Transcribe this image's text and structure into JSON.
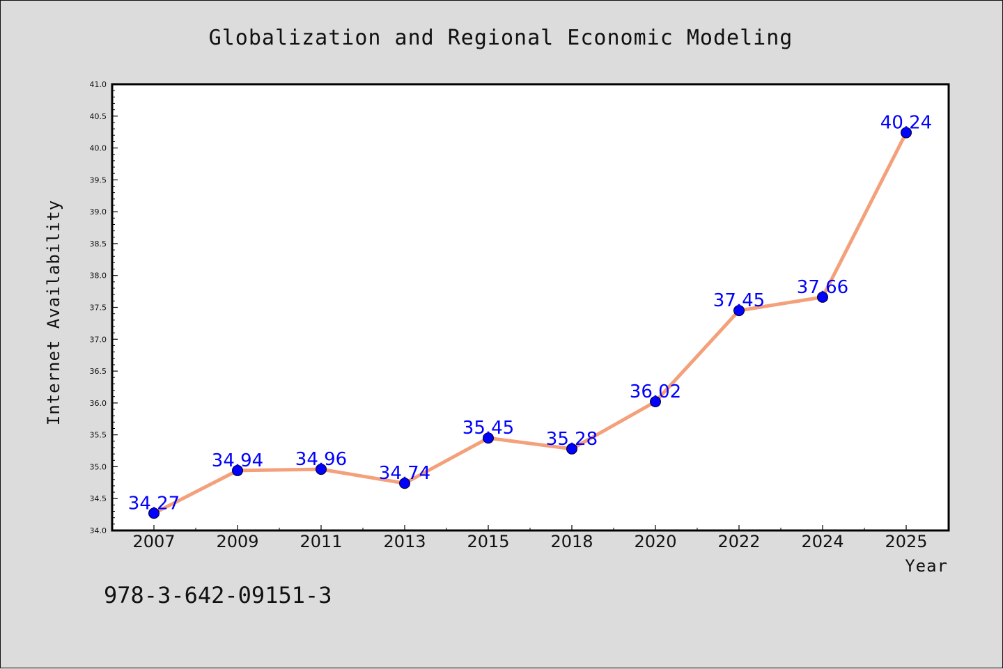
{
  "figure": {
    "background": "#dcdcdc",
    "footer_text": "978-3-642-09151-3"
  },
  "chart_data": {
    "type": "line",
    "title": "Globalization and Regional Economic Modeling",
    "xlabel": "Year",
    "ylabel": "Internet Availability",
    "categories": [
      "2007",
      "2009",
      "2011",
      "2013",
      "2015",
      "2018",
      "2020",
      "2022",
      "2024",
      "2025"
    ],
    "series": [
      {
        "values": [
          34.27,
          34.94,
          34.96,
          34.74,
          35.45,
          35.28,
          36.02,
          37.45,
          37.66,
          40.24
        ],
        "line_color": "#f4a07a",
        "marker_color": "#0000ff"
      }
    ],
    "data_labels": [
      "34.27",
      "34.94",
      "34.96",
      "34.74",
      "35.45",
      "35.28",
      "36.02",
      "37.45",
      "37.66",
      "40.24"
    ],
    "data_label_color": "#0000ff",
    "ylim": [
      34.0,
      41.0
    ],
    "yticks": [
      "34.0",
      "34.5",
      "35.0",
      "35.5",
      "36.0",
      "36.5",
      "37.0",
      "37.5",
      "38.0",
      "38.5",
      "39.0",
      "39.5",
      "40.0",
      "40.5",
      "41.0"
    ],
    "grid": false,
    "legend": "none"
  }
}
